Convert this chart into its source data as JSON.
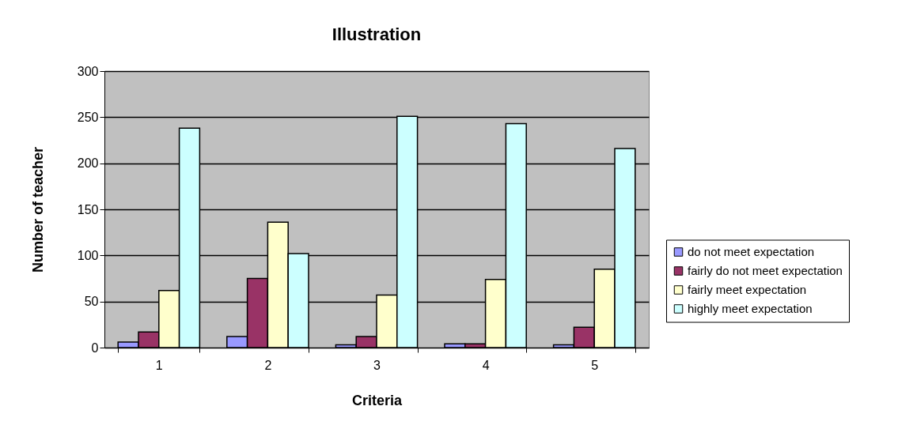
{
  "chart_data": {
    "type": "bar",
    "title": "Illustration",
    "xlabel": "Criteria",
    "ylabel": "Number of teacher",
    "categories": [
      "1",
      "2",
      "3",
      "4",
      "5"
    ],
    "series": [
      {
        "name": "do not meet expectation",
        "color": "#9999ff",
        "values": [
          6,
          12,
          3,
          4,
          3
        ]
      },
      {
        "name": "fairly do not meet expectation",
        "color": "#993366",
        "values": [
          17,
          75,
          12,
          4,
          22
        ]
      },
      {
        "name": "fairly meet expectation",
        "color": "#ffffcc",
        "values": [
          62,
          136,
          57,
          74,
          85
        ]
      },
      {
        "name": "highly meet expectation",
        "color": "#ccffff",
        "values": [
          238,
          102,
          251,
          243,
          216
        ]
      }
    ],
    "ylim": [
      0,
      300
    ],
    "yticks": [
      0,
      50,
      100,
      150,
      200,
      250,
      300
    ],
    "grid": "y",
    "legend": "right"
  }
}
